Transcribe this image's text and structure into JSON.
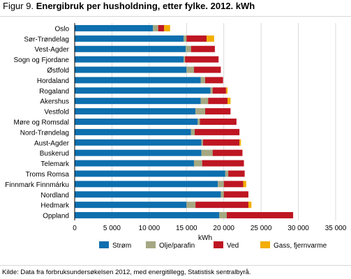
{
  "title": {
    "prefix": "Figur 9.",
    "text": "Energibruk per husholdning, etter fylke. 2012. kWh"
  },
  "source": "Kilde: Data fra forbruksundersøkelsen 2012, med energitillegg, Statistisk sentralbyrå.",
  "chart_data": {
    "type": "bar",
    "orientation": "horizontal",
    "stacked": true,
    "categories": [
      "Oslo",
      "Sør-Trøndelag",
      "Vest-Agder",
      "Sogn og Fjordane",
      "Østfold",
      "Hordaland",
      "Rogaland",
      "Akershus",
      "Vestfold",
      "Møre og Romsdal",
      "Nord-Trøndelag",
      "Aust-Agder",
      "Buskerud",
      "Telemark",
      "Troms Romsa",
      "Finnmark Finnmárku",
      "Nordland",
      "Hedmark",
      "Oppland"
    ],
    "series": [
      {
        "name": "Strøm",
        "color": "#0d6fae",
        "values": [
          10500,
          14600,
          14900,
          14600,
          15000,
          16900,
          18200,
          16900,
          16200,
          16500,
          15600,
          17000,
          17000,
          16000,
          20200,
          19200,
          19600,
          15000,
          19400
        ]
      },
      {
        "name": "Olje/parafin",
        "color": "#a5a882",
        "values": [
          700,
          400,
          700,
          200,
          1000,
          600,
          300,
          1000,
          1300,
          300,
          500,
          200,
          1500,
          1100,
          400,
          800,
          400,
          1200,
          1000
        ]
      },
      {
        "name": "Ved",
        "color": "#be1622",
        "values": [
          800,
          2700,
          3200,
          4500,
          3600,
          2400,
          1800,
          2600,
          3400,
          4900,
          6000,
          4900,
          4000,
          5600,
          2200,
          2600,
          3300,
          7100,
          8900
        ]
      },
      {
        "name": "Gass, fjernvarme",
        "color": "#f3ad00",
        "values": [
          800,
          1000,
          0,
          0,
          0,
          0,
          200,
          400,
          0,
          0,
          0,
          200,
          0,
          0,
          0,
          400,
          0,
          400,
          0
        ]
      }
    ],
    "xlabel": "kWh",
    "xlim": [
      0,
      35000
    ],
    "xticks": [
      0,
      5000,
      10000,
      15000,
      20000,
      25000,
      30000,
      35000
    ],
    "xtick_labels": [
      "0",
      "5 000",
      "10 000",
      "15 000",
      "20 000",
      "25 000",
      "30 000",
      "35 000"
    ],
    "grid": true,
    "legend_position": "bottom"
  }
}
